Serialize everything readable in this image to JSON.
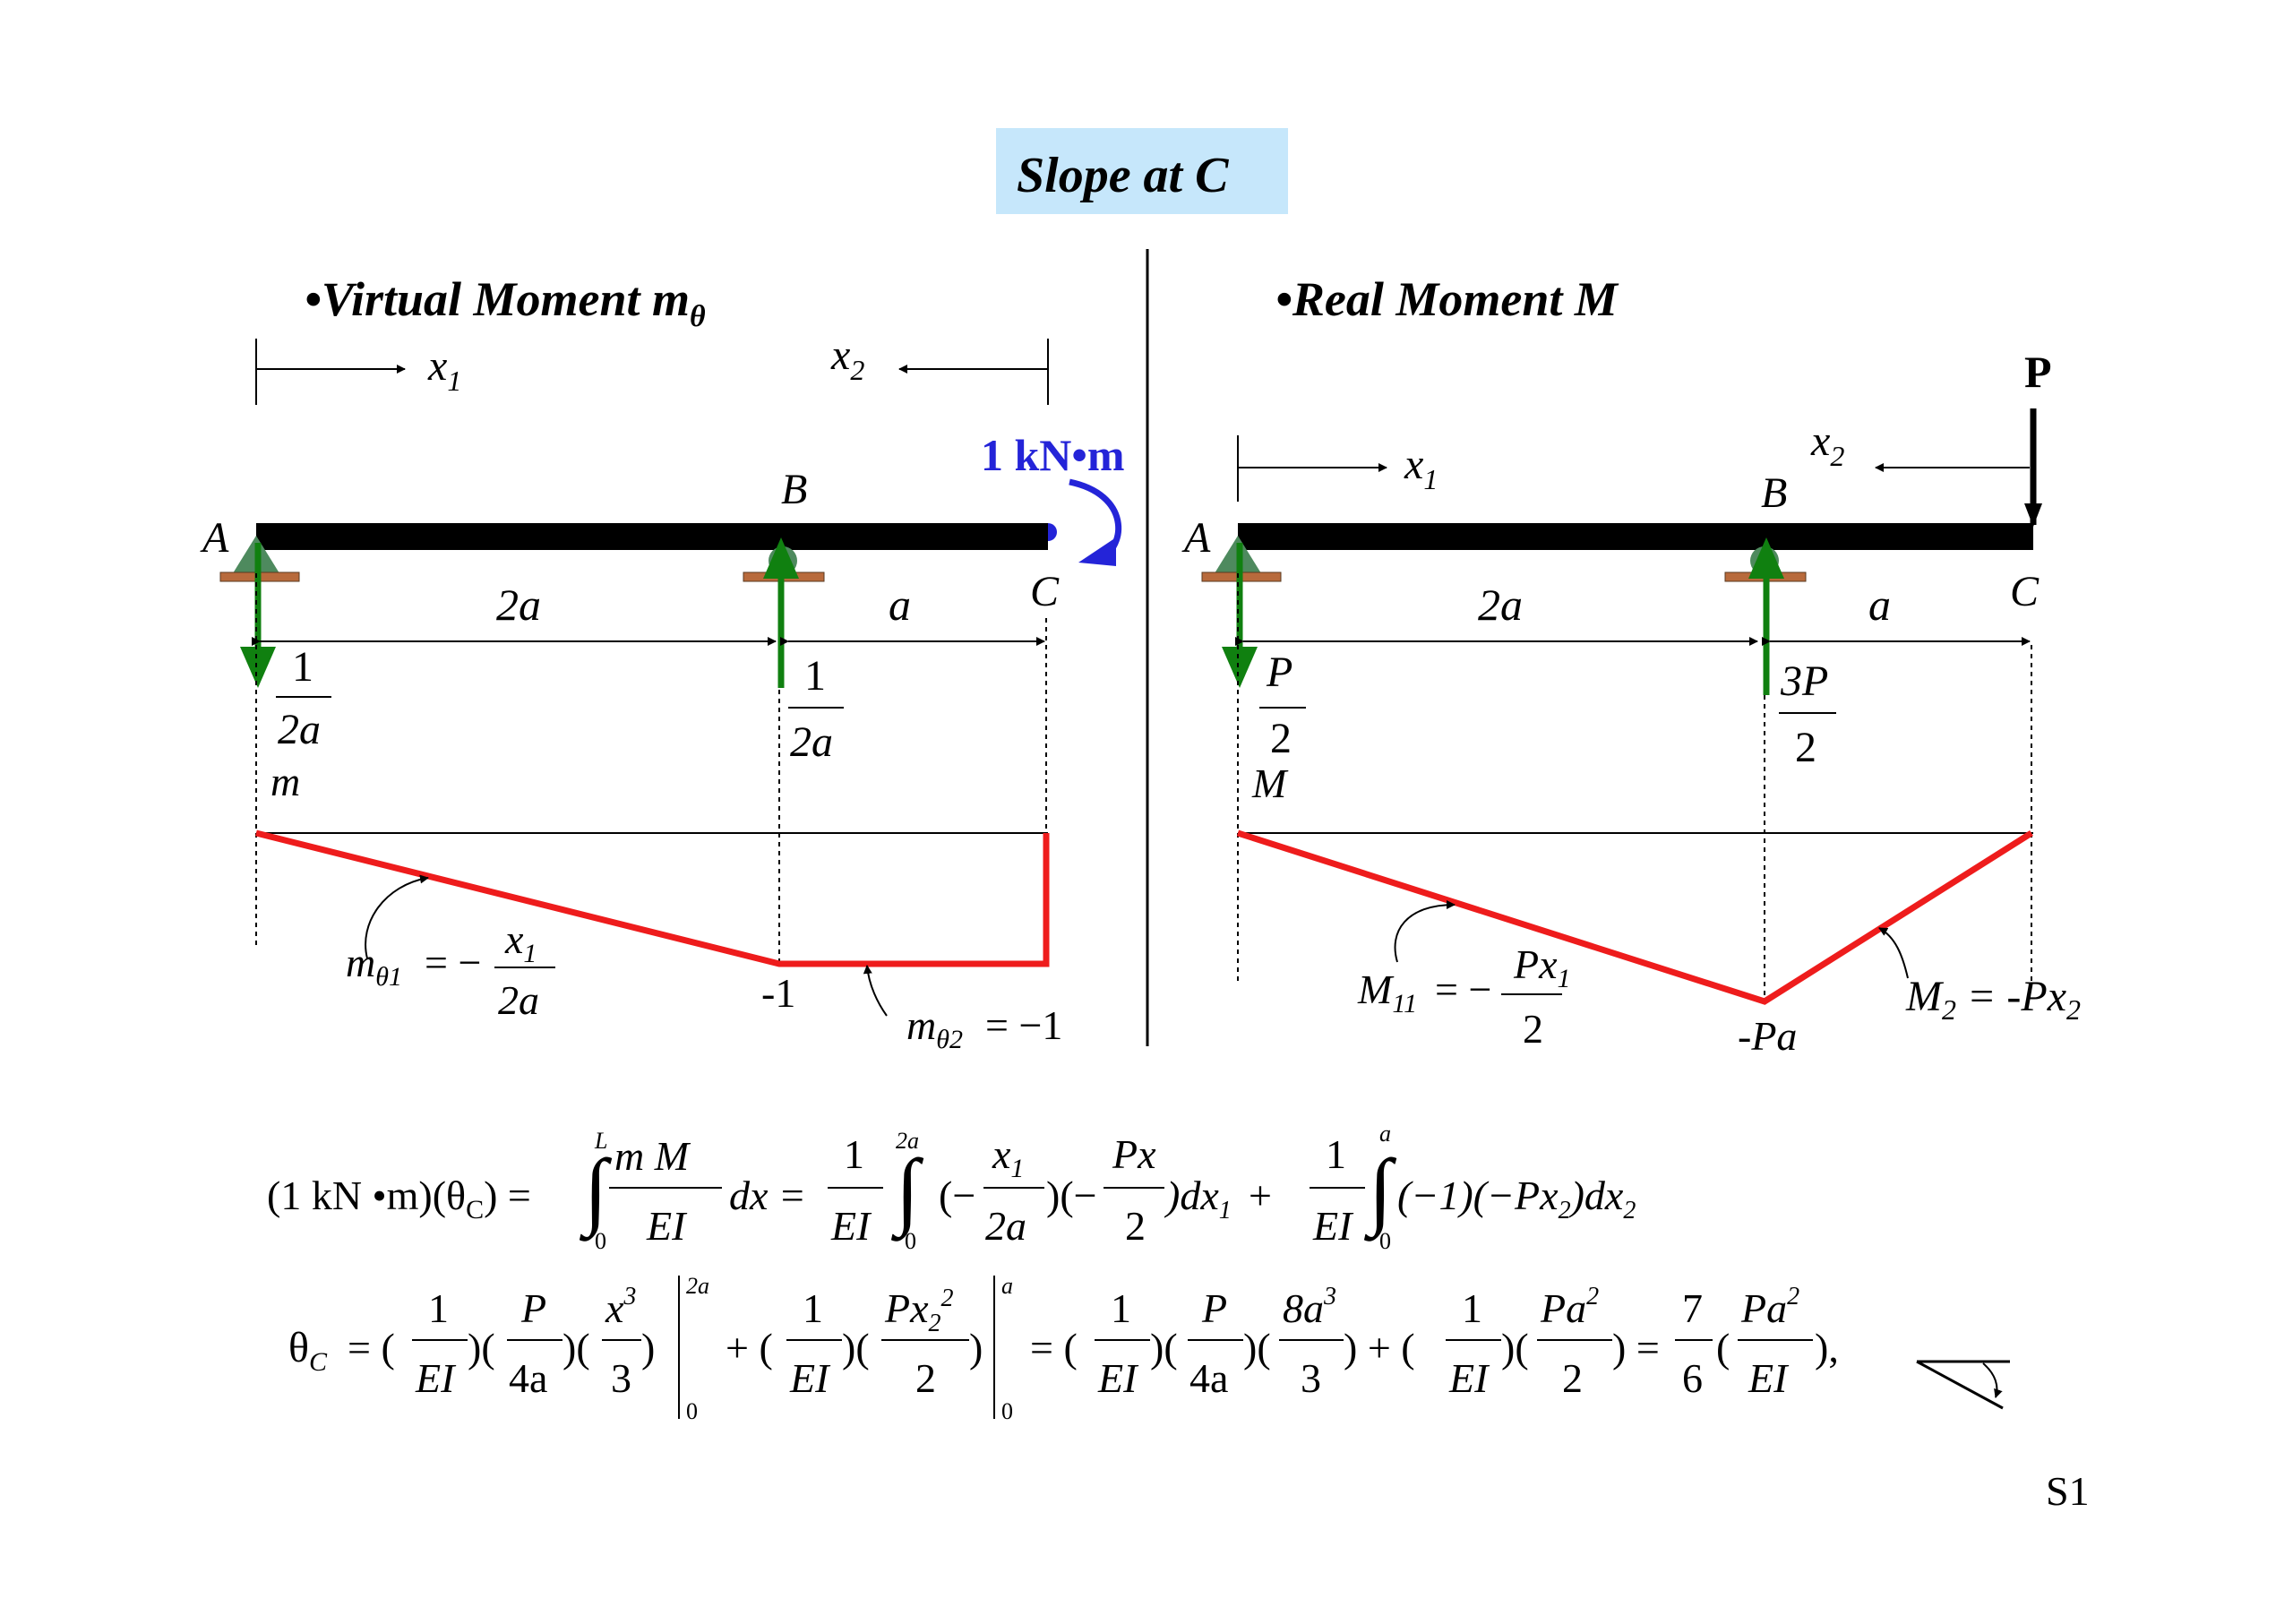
{
  "title": "Slope at C",
  "colors": {
    "title_bg": "#c6e7fb",
    "beam": "#000000",
    "reaction": "#108010",
    "moment_line": "#ee1c1c",
    "virtual_couple": "#2424d8",
    "support": "#b86a3c",
    "pin": "#4e8a5e"
  },
  "virtual": {
    "heading_bullet": "•",
    "heading": "Virtual Moment m",
    "heading_sub": "θ",
    "x1_label": "x",
    "x1_sub": "1",
    "x2_label": "x",
    "x2_sub": "2",
    "couple_label": "1 kN•m",
    "point_A": "A",
    "point_B": "B",
    "point_C": "C",
    "span_AB": "2a",
    "span_BC": "a",
    "reaction_A_num": "1",
    "reaction_A_den": "2a",
    "reaction_B_num": "1",
    "reaction_B_den": "2a",
    "diagram_label": "m",
    "value_B": "-1",
    "eq1_lhs": "m",
    "eq1_sub": "θ1",
    "eq1_eq": "= −",
    "eq1_num": "x",
    "eq1_num_sub": "1",
    "eq1_den": "2a",
    "eq2_lhs": "m",
    "eq2_sub": "θ2",
    "eq2_rhs": "= −1"
  },
  "real": {
    "heading_bullet": "•",
    "heading": "Real Moment M",
    "load_label": "P",
    "x1_label": "x",
    "x1_sub": "1",
    "x2_label": "x",
    "x2_sub": "2",
    "point_A": "A",
    "point_B": "B",
    "point_C": "C",
    "span_AB": "2a",
    "span_BC": "a",
    "reaction_A_num": "P",
    "reaction_A_den": "2",
    "reaction_B_num": "3P",
    "reaction_B_den": "2",
    "diagram_label": "M",
    "value_B": "-Pa",
    "eq1_lhs": "M",
    "eq1_sub": "11",
    "eq1_eq": "= −",
    "eq1_num": "Px",
    "eq1_num_sub": "1",
    "eq1_den": "2",
    "eq2_lhs": "M",
    "eq2_sub": "2",
    "eq2_rhs": "= -Px",
    "eq2_rhs_sub": "2"
  },
  "equation1": {
    "lhs": "(1 kN •m)(θ",
    "lhs_sub": "C",
    "lhs_end": ") =",
    "int1_upper": "L",
    "int1_lower": "0",
    "frac1_num": "m   M",
    "frac1_den": "EI",
    "dx_eq": "dx =",
    "frac2_num": "1",
    "frac2_den": "EI",
    "int2_upper": "2a",
    "int2_lower": "0",
    "paren_open": "(−",
    "frac3_num": "x",
    "frac3_num_sub": "1",
    "frac3_den": "2a",
    "paren_mid": ")(−",
    "frac4_num": "Px",
    "frac4_den": "2",
    "tail": ")dx",
    "tail_sub": "1",
    "plus": "+",
    "frac5_num": "1",
    "frac5_den": "EI",
    "int3_upper": "a",
    "int3_lower": "0",
    "last": "(−1)(−Px",
    "last_sub": "2",
    "last_end": ")dx",
    "last_end_sub": "2"
  },
  "equation2": {
    "lhs": "θ",
    "lhs_sub": "C",
    "eq": "= (",
    "f1_num": "1",
    "f1_den": "EI",
    "p1": ")(",
    "f2_num": "P",
    "f2_den": "4a",
    "p2": ")(",
    "f3_num": "x",
    "f3_num_sup": "3",
    "f3_den": "3",
    "p3": ")",
    "eval1_upper": "2a",
    "eval1_lower": "0",
    "plus1": "+ (",
    "f4_num": "1",
    "f4_den": "EI",
    "p4": ")(",
    "f5_num": "Px",
    "f5_num_sub": "2",
    "f5_num_sup": "2",
    "f5_den": "2",
    "p5": ")",
    "eval2_upper": "a",
    "eval2_lower": "0",
    "eq2": "= (",
    "f6_num": "1",
    "f6_den": "EI",
    "p6": ")(",
    "f7_num": "P",
    "f7_den": "4a",
    "p7": ")(",
    "f8_num": "8a",
    "f8_num_sup": "3",
    "f8_den": "3",
    "p8": ") + (",
    "f9_num": "1",
    "f9_den": "EI",
    "p9": ")(",
    "f10_num": "Pa",
    "f10_num_sup": "2",
    "f10_den": "2",
    "p10": ") =",
    "f11_num": "7",
    "f11_den": "6",
    "p11": "(",
    "f12_num": "Pa",
    "f12_num_sup": "2",
    "f12_den": "EI",
    "p12": "),"
  },
  "slide_number": "S1"
}
